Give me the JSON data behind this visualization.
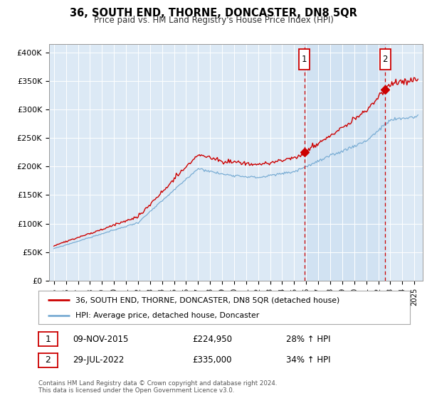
{
  "title": "36, SOUTH END, THORNE, DONCASTER, DN8 5QR",
  "subtitle": "Price paid vs. HM Land Registry's House Price Index (HPI)",
  "plot_background": "#dce9f5",
  "shaded_region_color": "#c8ddf0",
  "ylabel_ticks": [
    "£0",
    "£50K",
    "£100K",
    "£150K",
    "£200K",
    "£250K",
    "£300K",
    "£350K",
    "£400K"
  ],
  "ytick_values": [
    0,
    50000,
    100000,
    150000,
    200000,
    250000,
    300000,
    350000,
    400000
  ],
  "ylim": [
    0,
    415000
  ],
  "marker1_date": 2015.85,
  "marker1_value": 224950,
  "marker1_label": "1",
  "marker1_date_str": "09-NOV-2015",
  "marker1_price_str": "£224,950",
  "marker1_hpi_str": "28% ↑ HPI",
  "marker2_date": 2022.57,
  "marker2_value": 335000,
  "marker2_label": "2",
  "marker2_date_str": "29-JUL-2022",
  "marker2_price_str": "£335,000",
  "marker2_hpi_str": "34% ↑ HPI",
  "red_line_color": "#cc0000",
  "blue_line_color": "#7aadd4",
  "marker_box_color": "#cc0000",
  "grid_color": "#c8c8c8",
  "legend_label_red": "36, SOUTH END, THORNE, DONCASTER, DN8 5QR (detached house)",
  "legend_label_blue": "HPI: Average price, detached house, Doncaster",
  "footer": "Contains HM Land Registry data © Crown copyright and database right 2024.\nThis data is licensed under the Open Government Licence v3.0."
}
